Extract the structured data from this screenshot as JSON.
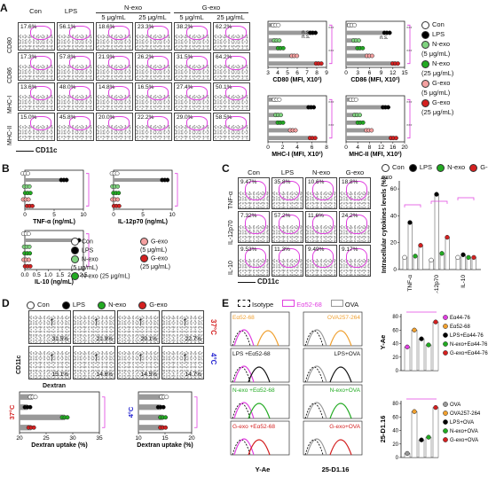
{
  "panelA": {
    "label": "A",
    "headers": [
      "Con",
      "LPS",
      "N-exo",
      "G-exo"
    ],
    "subheaders": [
      "5 μg/mL",
      "25 μg/mL",
      "5 μg/mL",
      "25 μg/mL"
    ],
    "rows": [
      {
        "name": "CD80",
        "pcts": [
          "17.6%",
          "56.1%",
          "18.6%",
          "23.3%",
          "38.2%",
          "62.2%"
        ]
      },
      {
        "name": "CD86",
        "pcts": [
          "17.3%",
          "57.8%",
          "21.9%",
          "26.2%",
          "31.5%",
          "64.2%"
        ]
      },
      {
        "name": "MHC-I",
        "pcts": [
          "13.6%",
          "48.0%",
          "14.8%",
          "16.5%",
          "27.4%",
          "50.1%"
        ]
      },
      {
        "name": "MHC-II",
        "pcts": [
          "15.0%",
          "45.8%",
          "20.0%",
          "22.2%",
          "29.0%",
          "58.5%"
        ]
      }
    ],
    "xaxis": "CD11c",
    "charts": [
      {
        "xlabel": "CD80 (MFI, X10²)",
        "ticks": [
          "3",
          "4",
          "5",
          "6",
          "7",
          "8",
          "9"
        ]
      },
      {
        "xlabel": "CD86 (MFI, X10²)",
        "ticks": [
          "0",
          "3",
          "6",
          "9",
          "12",
          "15"
        ]
      },
      {
        "xlabel": "MHC-I (MFI, X10²)",
        "ticks": [
          "0",
          "2",
          "4",
          "6",
          "8"
        ]
      },
      {
        "xlabel": "MHC-II (MFI, X10²)",
        "ticks": [
          "0",
          "4",
          "8",
          "12",
          "16",
          "20"
        ]
      }
    ],
    "legend": [
      "Con",
      "LPS",
      "N-exo\n(5 μg/mL)",
      "N-exo\n(25 μg/mL)",
      "G-exo\n(5 μg/mL)",
      "G-exo\n(25 μg/mL)"
    ],
    "ns": "n.s.",
    "stars": "***"
  },
  "panelB": {
    "label": "B",
    "charts": [
      {
        "xlabel": "TNF-α (ng/mL)",
        "ticks": [
          "0",
          "5",
          "10"
        ]
      },
      {
        "xlabel": "IL-12p70 (ng/mL)",
        "ticks": [
          "0",
          "5",
          "10"
        ]
      },
      {
        "xlabel": "IL-10 (ng/mL)",
        "ticks": [
          "0.0",
          "0.5",
          "1.0",
          "1.5",
          "2.0",
          "2.5"
        ]
      }
    ],
    "legend": [
      "Con",
      "LPS",
      "N-exo\n(5 μg/mL)",
      "N-exo (25 μg/mL)",
      "G-exo\n(5 μg/mL)",
      "G-exo\n(25 μg/mL)"
    ]
  },
  "panelC": {
    "label": "C",
    "headers": [
      "Con",
      "LPS",
      "N-exo",
      "G-exo"
    ],
    "rows": [
      {
        "name": "TNF-α",
        "pcts": [
          "9.47%",
          "35.8%",
          "10.6%",
          "18.8%"
        ]
      },
      {
        "name": "IL-12p70",
        "pcts": [
          "7.32%",
          "57.2%",
          "11.6%",
          "24.2%"
        ]
      },
      {
        "name": "IL-10",
        "pcts": [
          "9.53%",
          "11.3%",
          "9.49%",
          "9.17%"
        ]
      }
    ],
    "xaxis": "CD11c",
    "ylabel": "Intracellular cytokines levels (%)",
    "yticks": [
      "0",
      "20",
      "40",
      "60"
    ],
    "groups": [
      "TNF-α",
      "IL-12p70",
      "IL-10"
    ],
    "legend": [
      "Con",
      "LPS",
      "N-exo",
      "G-exo"
    ]
  },
  "panelD": {
    "label": "D",
    "legend": [
      "Con",
      "LPS",
      "N-exo",
      "G-exo"
    ],
    "temps": [
      "37°C",
      "4°C"
    ],
    "pcts37": [
      "31.5%",
      "21.9%",
      "29.1%",
      "22.7%"
    ],
    "pcts4": [
      "15.1%",
      "14.6%",
      "14.5%",
      "14.7%"
    ],
    "yaxis": "CD11c",
    "xaxis": "Dextran",
    "charts": [
      {
        "xlabel": "Dextran uptake (%)",
        "ticks": [
          "20",
          "25",
          "30",
          "35"
        ]
      },
      {
        "xlabel": "Dextran uptake (%)",
        "ticks": [
          "10",
          "15",
          "20"
        ]
      }
    ]
  },
  "panelE": {
    "label": "E",
    "legend": [
      "Isotype",
      "Eα52-68",
      "OVA"
    ],
    "leftLabels": [
      "Eα52-68",
      "LPS\n+Eα52-68",
      "N-exo\n+Eα52-68",
      "G-exo\n+Eα52-68"
    ],
    "rightLabels": [
      "OVA257-264",
      "LPS+OVA",
      "N-exo+OVA",
      "G-exo+OVA"
    ],
    "xaxis1": "Y-Ae",
    "xaxis2": "25-D1.16",
    "chart1": {
      "ylabel": "Y-Ae",
      "yticks": [
        "0",
        "20",
        "40",
        "60",
        "80"
      ],
      "legend": [
        "Eα44-76",
        "Eα52-68",
        "LPS+Eα44-76",
        "N-exo+Eα44-76",
        "G-exo+Eα44-76"
      ]
    },
    "chart2": {
      "ylabel": "25-D1.16",
      "yticks": [
        "0",
        "20",
        "40",
        "60",
        "80"
      ],
      "legend": [
        "OVA",
        "OVA257-264",
        "LPS+OVA",
        "N-exo+OVA",
        "G-exo+OVA"
      ]
    }
  },
  "colors": {
    "con": "#ffffff",
    "lps": "#000000",
    "nexo5": "#7fd37f",
    "nexo25": "#22aa22",
    "gexo5": "#f4a0a0",
    "gexo25": "#d42020",
    "magenta": "#e040e0",
    "orange": "#f0a030"
  }
}
